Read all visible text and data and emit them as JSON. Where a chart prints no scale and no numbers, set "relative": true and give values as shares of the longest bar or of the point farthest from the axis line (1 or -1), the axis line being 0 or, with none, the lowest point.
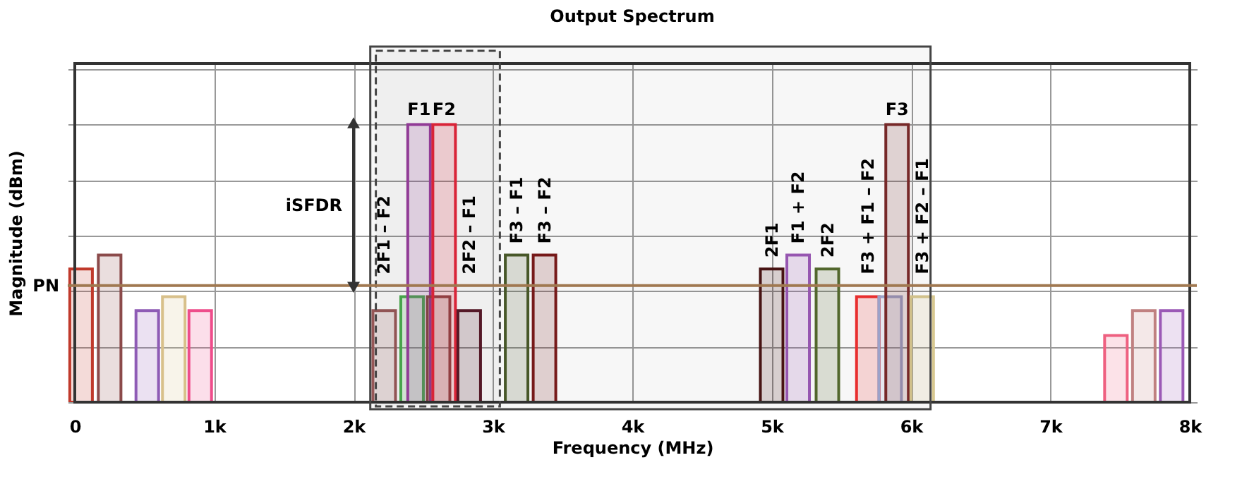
{
  "chart_data": {
    "type": "bar",
    "title": "Output Spectrum",
    "xlabel": "Frequency (MHz)",
    "ylabel": "Magnitude (dBm)",
    "relative": true,
    "grid": true,
    "xlim": [
      0,
      8000
    ],
    "xticks": [
      0,
      {
        "value": 1000,
        "label": "1k"
      },
      {
        "value": 2000,
        "label": "2k"
      },
      {
        "value": 3000,
        "label": "3k"
      },
      {
        "value": 4000,
        "label": "4k"
      },
      {
        "value": 5000,
        "label": "5k"
      },
      {
        "value": 6000,
        "label": "6k"
      },
      {
        "value": 7000,
        "label": "7k"
      },
      {
        "value": 8000,
        "label": "8k"
      }
    ],
    "series": [
      {
        "color": "#c0392b",
        "x": [
          45
        ],
        "values": [
          0.48
        ]
      },
      {
        "color": "#8b4a4a",
        "x": [
          250
        ],
        "values": [
          0.53
        ]
      },
      {
        "color": "#8e5bb5",
        "x": [
          520
        ],
        "values": [
          0.33
        ]
      },
      {
        "color": "#d8c08a",
        "x": [
          710
        ],
        "values": [
          0.38
        ]
      },
      {
        "color": "#ee4d8b",
        "x": [
          900
        ],
        "values": [
          0.33
        ]
      },
      {
        "color": "#9b5a5a",
        "x": [
          2220
        ],
        "values": [
          0.33
        ]
      },
      {
        "color": "#4caf50",
        "x": [
          2420
        ],
        "values": [
          0.38
        ]
      },
      {
        "name": "F1",
        "color": "#9b3fa0",
        "x": [
          2470
        ],
        "values": [
          1.0
        ]
      },
      {
        "color": "#8b4a4a",
        "x": [
          2610
        ],
        "values": [
          0.38
        ]
      },
      {
        "name": "F2",
        "color": "#e8283c",
        "x": [
          2650
        ],
        "values": [
          1.0
        ]
      },
      {
        "color": "#5a1a2a",
        "x": [
          2830
        ],
        "values": [
          0.33
        ]
      },
      {
        "color": "#4a5a2a",
        "x": [
          3170
        ],
        "values": [
          0.53
        ]
      },
      {
        "color": "#7a1a1a",
        "x": [
          3370
        ],
        "values": [
          0.53
        ]
      },
      {
        "color": "#4a1414",
        "x": [
          5000
        ],
        "values": [
          0.48
        ]
      },
      {
        "color": "#9b59b6",
        "x": [
          5190
        ],
        "values": [
          0.53
        ]
      },
      {
        "color": "#556b2f",
        "x": [
          5400
        ],
        "values": [
          0.48
        ]
      },
      {
        "color": "#f03030",
        "x": [
          5690
        ],
        "values": [
          0.38
        ]
      },
      {
        "color": "#a0a8d0",
        "x": [
          5850
        ],
        "values": [
          0.38
        ]
      },
      {
        "name": "F3",
        "color": "#7a2a2a",
        "x": [
          5900
        ],
        "values": [
          1.0
        ]
      },
      {
        "color": "#d8c890",
        "x": [
          6080
        ],
        "values": [
          0.38
        ]
      },
      {
        "color": "#ee6080",
        "x": [
          7470
        ],
        "values": [
          0.24
        ]
      },
      {
        "color": "#c08080",
        "x": [
          7670
        ],
        "values": [
          0.33
        ]
      },
      {
        "color": "#9b59b6",
        "x": [
          7870
        ],
        "values": [
          0.33
        ]
      }
    ],
    "ref_lines": [
      {
        "axis": "y",
        "value": 0.42,
        "label": "PN",
        "color": "#a07850"
      }
    ],
    "bands": [
      {
        "axis": "x",
        "from": 2120,
        "to": 6140
      },
      {
        "axis": "x",
        "from": 2160,
        "to": 3050
      }
    ],
    "annotations": [
      {
        "text": "2F1 – F2",
        "x": 2220,
        "y": 0.33
      },
      {
        "text": "2F2 – F1",
        "x": 2830,
        "y": 0.33
      },
      {
        "text": "F3 – F1",
        "x": 3170,
        "y": 0.53
      },
      {
        "text": "F3 – F2",
        "x": 3370,
        "y": 0.53
      },
      {
        "text": "2F1",
        "x": 5000,
        "y": 0.48
      },
      {
        "text": "F1 + F2",
        "x": 5190,
        "y": 0.53
      },
      {
        "text": "2F2",
        "x": 5400,
        "y": 0.48
      },
      {
        "text": "F3 + F1 – F2",
        "x": 5690,
        "y": 0.38
      },
      {
        "text": "F3 + F2 – F1",
        "x": 6080,
        "y": 0.38
      },
      "iSFDR"
    ]
  }
}
